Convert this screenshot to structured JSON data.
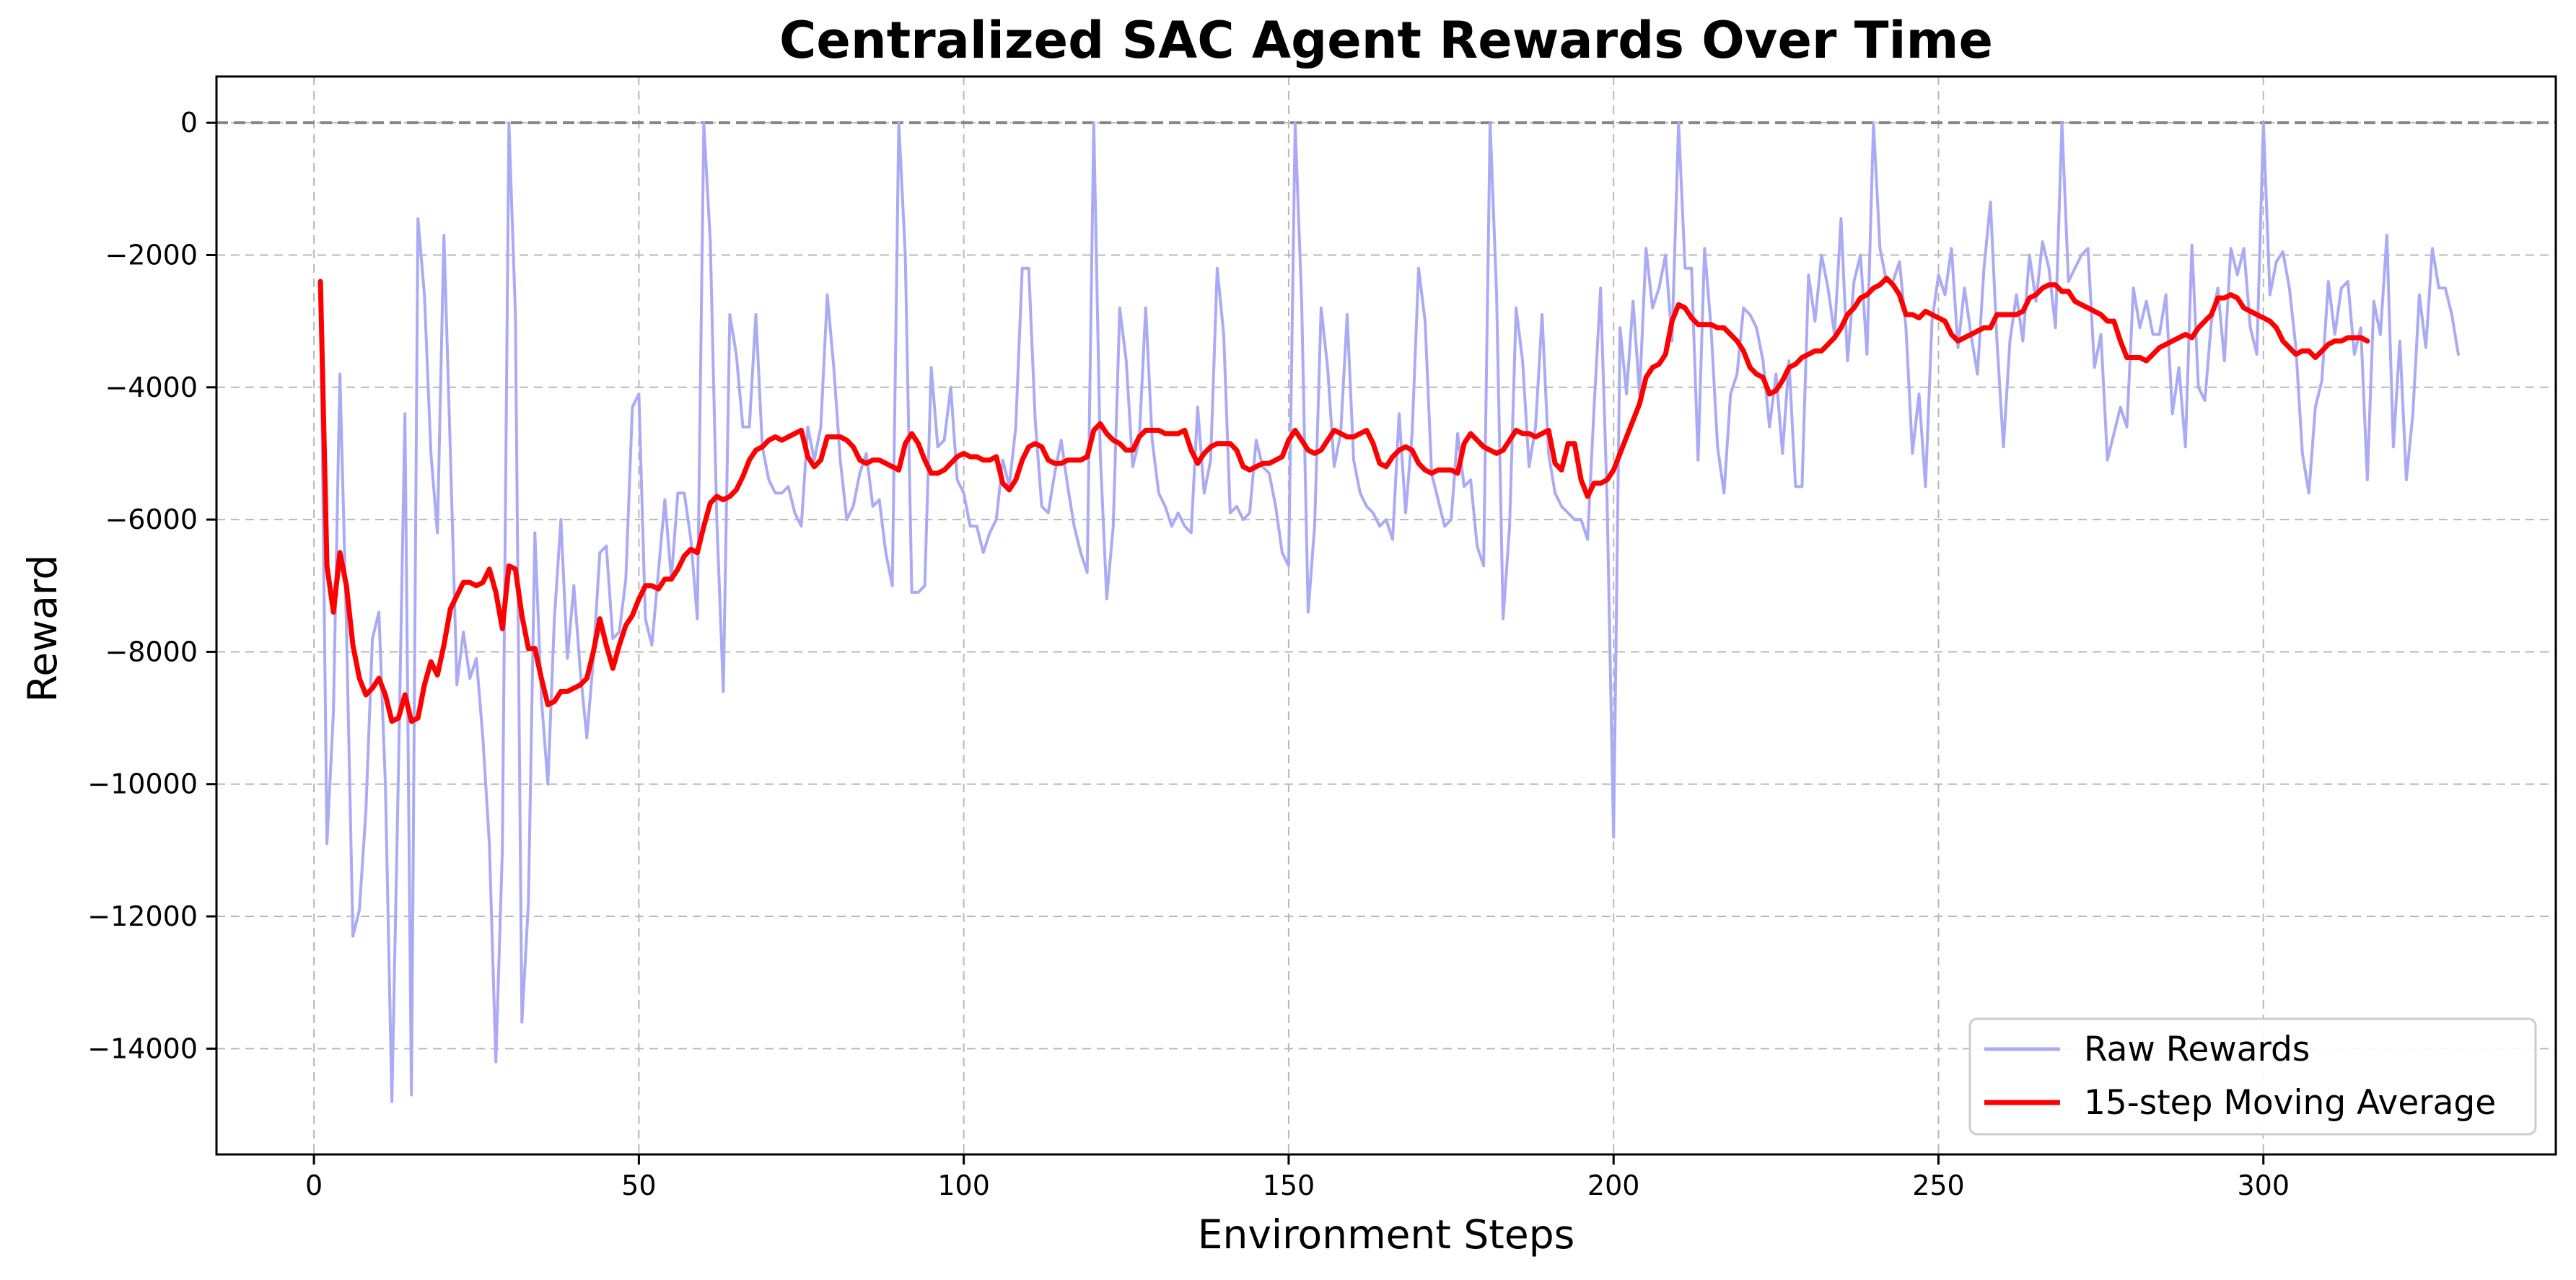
{
  "chart_data": {
    "type": "line",
    "title": "Centralized SAC Agent Rewards Over Time",
    "xlabel": "Environment Steps",
    "ylabel": "Reward",
    "xlim": [
      -15,
      345
    ],
    "ylim": [
      -15600,
      700
    ],
    "x_ticks": [
      0,
      50,
      100,
      150,
      200,
      250,
      300
    ],
    "y_ticks": [
      0,
      -2000,
      -4000,
      -6000,
      -8000,
      -10000,
      -12000,
      -14000
    ],
    "x_tick_labels": [
      "0",
      "50",
      "100",
      "150",
      "200",
      "250",
      "300"
    ],
    "y_tick_labels": [
      "0",
      "−2000",
      "−4000",
      "−6000",
      "−8000",
      "−10000",
      "−12000",
      "−14000"
    ],
    "grid": true,
    "reference_line_y": 0,
    "legend_position": "lower right",
    "x_start": 1,
    "series": [
      {
        "name": "Raw Rewards",
        "color": "#aaaaf5",
        "values": [
          -2400,
          -10900,
          -8900,
          -3800,
          -7600,
          -12300,
          -11900,
          -10400,
          -7800,
          -7400,
          -10000,
          -14800,
          -9800,
          -4400,
          -14700,
          -1450,
          -2600,
          -5000,
          -6200,
          -1700,
          -5000,
          -8500,
          -7700,
          -8400,
          -8100,
          -9300,
          -10900,
          -14200,
          -11000,
          0,
          -2900,
          -13600,
          -11800,
          -6200,
          -8700,
          -10000,
          -7500,
          -6000,
          -8100,
          -7000,
          -8300,
          -9300,
          -8100,
          -6500,
          -6400,
          -7800,
          -7700,
          -6900,
          -4300,
          -4100,
          -7500,
          -7900,
          -6800,
          -5700,
          -6900,
          -5600,
          -5600,
          -6300,
          -7500,
          0,
          -1800,
          -6000,
          -8600,
          -2900,
          -3500,
          -4600,
          -4600,
          -2900,
          -4900,
          -5400,
          -5600,
          -5600,
          -5500,
          -5900,
          -6100,
          -4600,
          -5100,
          -4600,
          -2600,
          -3700,
          -5100,
          -6000,
          -5800,
          -5300,
          -5000,
          -5800,
          -5700,
          -6500,
          -7000,
          0,
          -2000,
          -7100,
          -7100,
          -7000,
          -3700,
          -4900,
          -4800,
          -4000,
          -5400,
          -5600,
          -6100,
          -6100,
          -6500,
          -6200,
          -6000,
          -5100,
          -5500,
          -4600,
          -2200,
          -2200,
          -4500,
          -5800,
          -5900,
          -5300,
          -4800,
          -5500,
          -6100,
          -6500,
          -6800,
          0,
          -5000,
          -7200,
          -6100,
          -2800,
          -3600,
          -5200,
          -4800,
          -2800,
          -4800,
          -5600,
          -5800,
          -6100,
          -5900,
          -6100,
          -6200,
          -4300,
          -5600,
          -5100,
          -2200,
          -3200,
          -5900,
          -5800,
          -6000,
          -5900,
          -4800,
          -5200,
          -5300,
          -5800,
          -6500,
          -6700,
          0,
          -2700,
          -7400,
          -6100,
          -2800,
          -3700,
          -5200,
          -4700,
          -2900,
          -5100,
          -5600,
          -5800,
          -5900,
          -6100,
          -6000,
          -6300,
          -4400,
          -5900,
          -4700,
          -2200,
          -3000,
          -5300,
          -5700,
          -6100,
          -6000,
          -4700,
          -5500,
          -5400,
          -6400,
          -6700,
          0,
          -2600,
          -7500,
          -6100,
          -2800,
          -3600,
          -5200,
          -4600,
          -2900,
          -5000,
          -5600,
          -5800,
          -5900,
          -6000,
          -6000,
          -6300,
          -4300,
          -2500,
          -5700,
          -10800,
          -3100,
          -4100,
          -2700,
          -4100,
          -1900,
          -2800,
          -2500,
          -2000,
          -3300,
          0,
          -2200,
          -2200,
          -5100,
          -1900,
          -3100,
          -4900,
          -5600,
          -4100,
          -3800,
          -2800,
          -2900,
          -3100,
          -3600,
          -4600,
          -3800,
          -5000,
          -3600,
          -5500,
          -5500,
          -2300,
          -3000,
          -2000,
          -2500,
          -3200,
          -1450,
          -3600,
          -2400,
          -2000,
          -3500,
          0,
          -1900,
          -2400,
          -2400,
          -2100,
          -3100,
          -5000,
          -4100,
          -5500,
          -3000,
          -2300,
          -2600,
          -1900,
          -3400,
          -2500,
          -3200,
          -3800,
          -2200,
          -1200,
          -3300,
          -4900,
          -3300,
          -2600,
          -3300,
          -2000,
          -2700,
          -1800,
          -2200,
          -3100,
          0,
          -2400,
          -2200,
          -2000,
          -1900,
          -3700,
          -3200,
          -5100,
          -4700,
          -4300,
          -4600,
          -2500,
          -3100,
          -2700,
          -3200,
          -3200,
          -2600,
          -4400,
          -3700,
          -4900,
          -1850,
          -4000,
          -4200,
          -3000,
          -2500,
          -3600,
          -1900,
          -2300,
          -1900,
          -3100,
          -3500,
          0,
          -2600,
          -2100,
          -1950,
          -2500,
          -3400,
          -5000,
          -5600,
          -4300,
          -3900,
          -2400,
          -3200,
          -2500,
          -2400,
          -3500,
          -3100,
          -5400,
          -2700,
          -3200,
          -1700,
          -4900,
          -3300,
          -5400,
          -4400,
          -2600,
          -3400,
          -1900,
          -2500,
          -2500,
          -2900,
          -3500
        ],
        "line_width": 4
      },
      {
        "name": "15-step Moving Average",
        "color": "#ff0000",
        "values": [
          -2400,
          -6700,
          -7400,
          -6500,
          -7000,
          -7900,
          -8400,
          -8650,
          -8550,
          -8400,
          -8650,
          -9050,
          -9000,
          -8650,
          -9050,
          -9000,
          -8500,
          -8150,
          -8350,
          -7900,
          -7350,
          -7150,
          -6950,
          -6950,
          -7000,
          -6950,
          -6750,
          -7100,
          -7650,
          -6700,
          -6750,
          -7450,
          -7950,
          -7950,
          -8400,
          -8800,
          -8750,
          -8600,
          -8600,
          -8550,
          -8500,
          -8400,
          -8000,
          -7500,
          -7900,
          -8250,
          -7900,
          -7600,
          -7450,
          -7200,
          -7000,
          -7000,
          -7050,
          -6900,
          -6900,
          -6750,
          -6550,
          -6450,
          -6500,
          -6100,
          -5750,
          -5650,
          -5700,
          -5650,
          -5550,
          -5350,
          -5100,
          -4950,
          -4900,
          -4800,
          -4750,
          -4800,
          -4750,
          -4700,
          -4650,
          -5050,
          -5200,
          -5100,
          -4750,
          -4750,
          -4750,
          -4800,
          -4900,
          -5100,
          -5150,
          -5100,
          -5100,
          -5150,
          -5200,
          -5250,
          -4850,
          -4700,
          -4850,
          -5100,
          -5300,
          -5300,
          -5250,
          -5150,
          -5050,
          -5000,
          -5050,
          -5050,
          -5100,
          -5100,
          -5050,
          -5450,
          -5550,
          -5400,
          -5100,
          -4900,
          -4850,
          -4900,
          -5100,
          -5150,
          -5150,
          -5100,
          -5100,
          -5100,
          -5050,
          -4650,
          -4550,
          -4700,
          -4800,
          -4850,
          -4950,
          -4950,
          -4750,
          -4650,
          -4650,
          -4650,
          -4700,
          -4700,
          -4700,
          -4650,
          -4950,
          -5150,
          -5000,
          -4900,
          -4850,
          -4850,
          -4850,
          -4950,
          -5200,
          -5250,
          -5200,
          -5150,
          -5150,
          -5100,
          -5050,
          -4800,
          -4650,
          -4800,
          -4950,
          -5000,
          -4950,
          -4800,
          -4650,
          -4700,
          -4750,
          -4750,
          -4700,
          -4650,
          -4850,
          -5150,
          -5200,
          -5050,
          -4950,
          -4900,
          -4950,
          -5150,
          -5250,
          -5300,
          -5250,
          -5250,
          -5250,
          -5300,
          -4850,
          -4700,
          -4800,
          -4900,
          -4950,
          -5000,
          -4950,
          -4800,
          -4650,
          -4700,
          -4700,
          -4750,
          -4700,
          -4650,
          -5150,
          -5250,
          -4850,
          -4850,
          -5400,
          -5650,
          -5450,
          -5450,
          -5400,
          -5250,
          -5000,
          -4750,
          -4500,
          -4250,
          -3850,
          -3700,
          -3650,
          -3500,
          -3000,
          -2750,
          -2800,
          -2950,
          -3050,
          -3050,
          -3050,
          -3100,
          -3100,
          -3200,
          -3300,
          -3450,
          -3700,
          -3800,
          -3850,
          -4100,
          -4050,
          -3900,
          -3700,
          -3650,
          -3550,
          -3500,
          -3450,
          -3450,
          -3350,
          -3250,
          -3100,
          -2900,
          -2800,
          -2650,
          -2600,
          -2500,
          -2450,
          -2350,
          -2450,
          -2600,
          -2900,
          -2900,
          -2950,
          -2850,
          -2900,
          -2950,
          -3000,
          -3200,
          -3300,
          -3250,
          -3200,
          -3150,
          -3100,
          -3100,
          -2900,
          -2900,
          -2900,
          -2900,
          -2850,
          -2650,
          -2600,
          -2500,
          -2450,
          -2450,
          -2550,
          -2550,
          -2700,
          -2750,
          -2800,
          -2850,
          -2900,
          -3000,
          -3000,
          -3300,
          -3550,
          -3550,
          -3550,
          -3600,
          -3500,
          -3400,
          -3350,
          -3300,
          -3250,
          -3200,
          -3250,
          -3100,
          -3000,
          -2900,
          -2650,
          -2650,
          -2600,
          -2650,
          -2800,
          -2850,
          -2900,
          -2950,
          -3000,
          -3100,
          -3300,
          -3400,
          -3500,
          -3450,
          -3450,
          -3550,
          -3450,
          -3350,
          -3300,
          -3300,
          -3250,
          -3250,
          -3250,
          -3300
        ],
        "line_width": 7
      }
    ]
  }
}
